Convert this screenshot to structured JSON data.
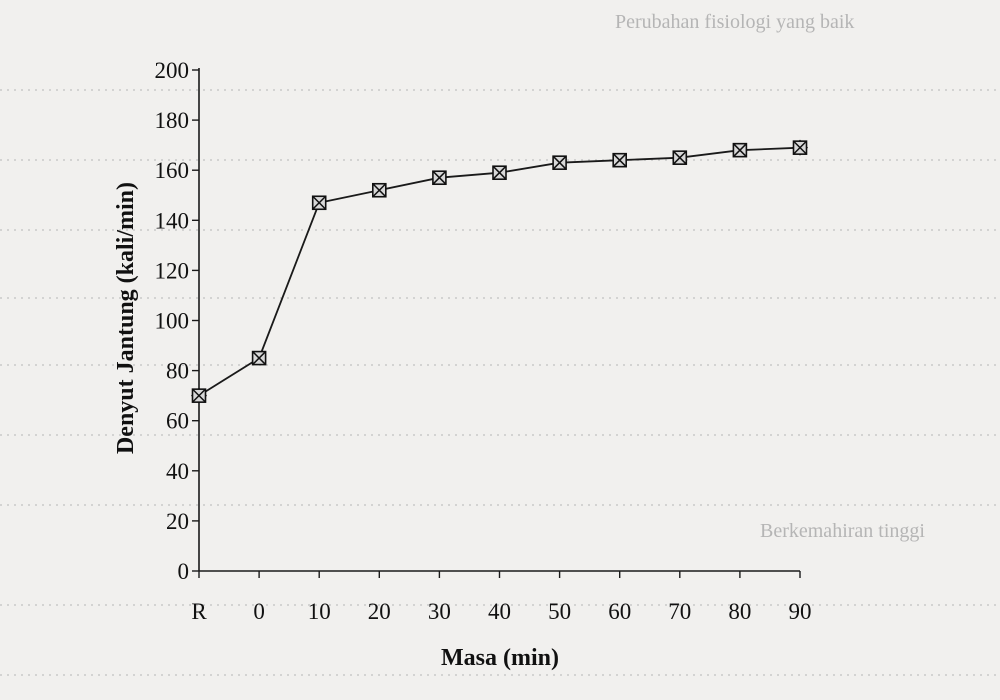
{
  "background_text": {
    "line_top": "Perubahan fisiologi yang baik",
    "line_mid": "Berkemahiran tinggi"
  },
  "chart_data": {
    "type": "line",
    "title": "",
    "xlabel": "Masa (min)",
    "ylabel": "Denyut Jantung (kali/min)",
    "categories": [
      "R",
      "0",
      "10",
      "20",
      "30",
      "40",
      "50",
      "60",
      "70",
      "80",
      "90"
    ],
    "series": [
      {
        "values": [
          70,
          85,
          147,
          152,
          157,
          159,
          163,
          164,
          165,
          168,
          169
        ]
      }
    ],
    "ylim": [
      0,
      200
    ],
    "yticks": [
      0,
      20,
      40,
      60,
      80,
      100,
      120,
      140,
      160,
      180,
      200
    ],
    "grid": false,
    "legend": "none",
    "colors": {
      "line": "#1a1a1a",
      "marker_fill": "#d8d8d8",
      "page": "#f1f0ee",
      "bleed_through": "#c9c9c9"
    }
  }
}
